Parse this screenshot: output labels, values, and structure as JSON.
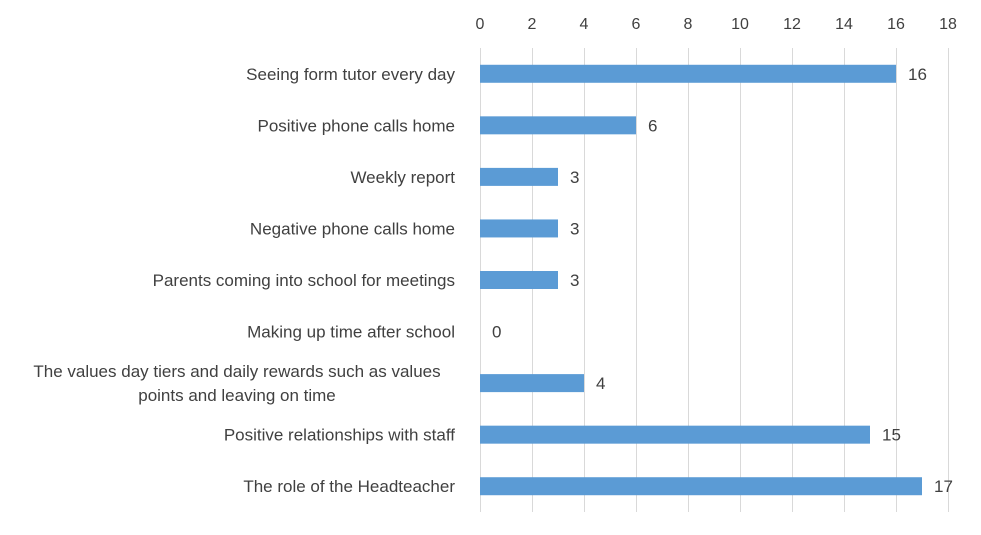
{
  "chart_data": {
    "type": "bar",
    "orientation": "horizontal",
    "categories": [
      "Seeing form tutor every day",
      "Positive phone calls home",
      "Weekly report",
      "Negative phone calls home",
      "Parents coming into school for meetings",
      "Making up time after school",
      [
        "The values day tiers and daily rewards such as values",
        "points and leaving on time"
      ],
      "Positive relationships with staff",
      "The role of the Headteacher"
    ],
    "values": [
      16,
      6,
      3,
      3,
      3,
      0,
      4,
      15,
      17
    ],
    "data_labels": [
      "16",
      "6",
      "3",
      "3",
      "3",
      "0",
      "4",
      "15",
      "17"
    ],
    "x_ticks": [
      "0",
      "2",
      "4",
      "6",
      "8",
      "10",
      "12",
      "14",
      "16",
      "18"
    ],
    "xlim": [
      0,
      18
    ],
    "x_axis_position": "top",
    "grid": true,
    "bar_color": "#5b9bd5",
    "grid_color": "#d9d9d9",
    "text_color": "#404040"
  }
}
